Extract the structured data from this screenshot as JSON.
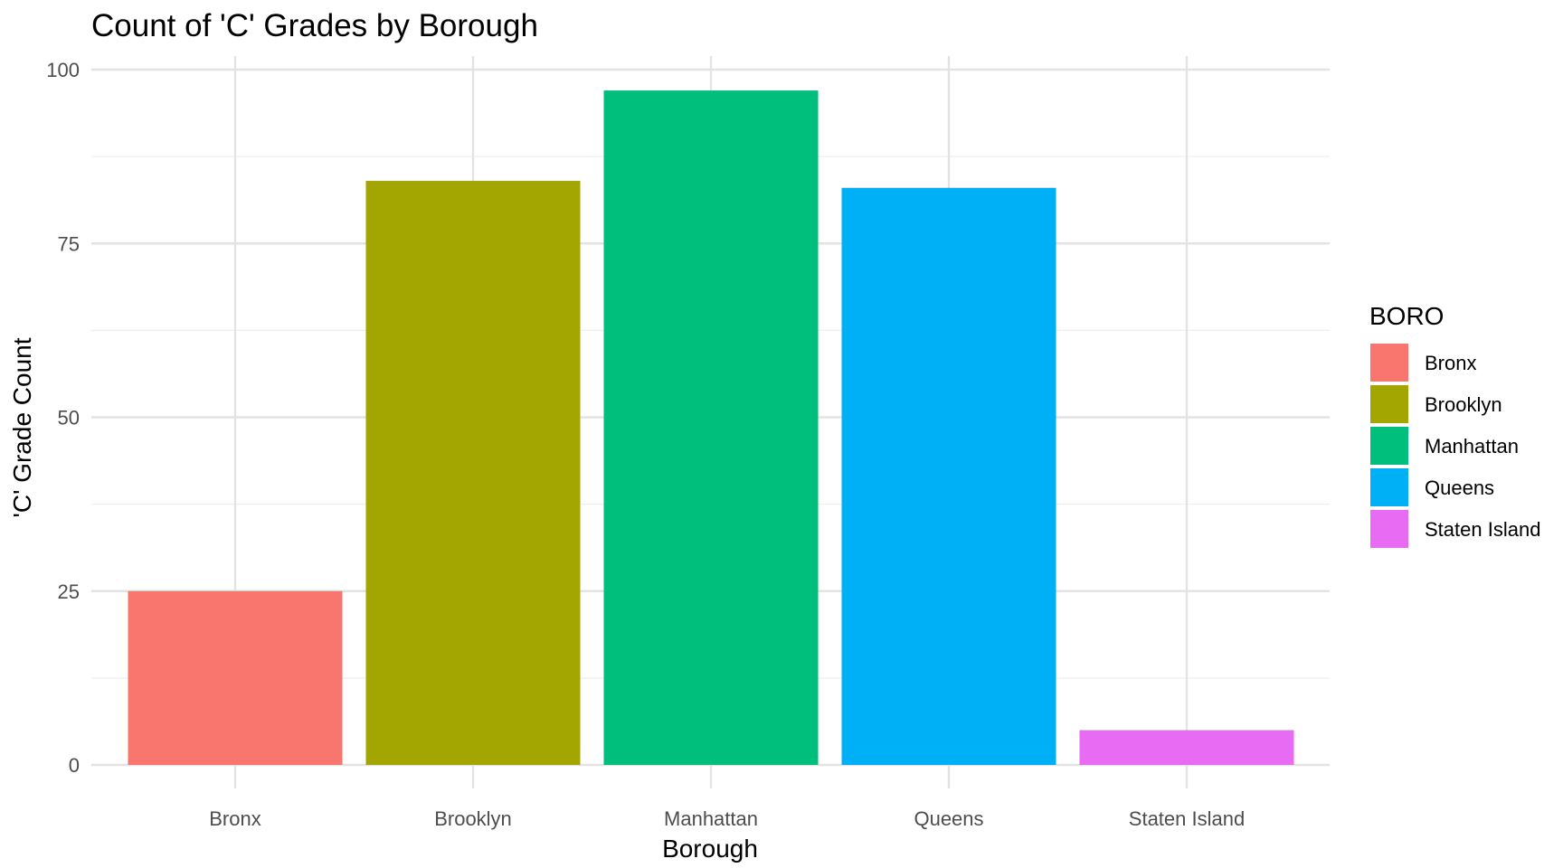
{
  "chart_data": {
    "type": "bar",
    "title": "Count of 'C' Grades by Borough",
    "xlabel": "Borough",
    "ylabel": "'C' Grade Count",
    "categories": [
      "Bronx",
      "Brooklyn",
      "Manhattan",
      "Queens",
      "Staten Island"
    ],
    "values": [
      25,
      84,
      97,
      83,
      5
    ],
    "colors": [
      "#F8766D",
      "#A3A500",
      "#00BF7D",
      "#00B0F6",
      "#E76BF3"
    ],
    "ylim": [
      0,
      100
    ],
    "yticks": [
      0,
      25,
      50,
      75,
      100
    ],
    "grid": true,
    "legend": {
      "title": "BORO",
      "position": "right",
      "entries": [
        "Bronx",
        "Brooklyn",
        "Manhattan",
        "Queens",
        "Staten Island"
      ]
    }
  }
}
